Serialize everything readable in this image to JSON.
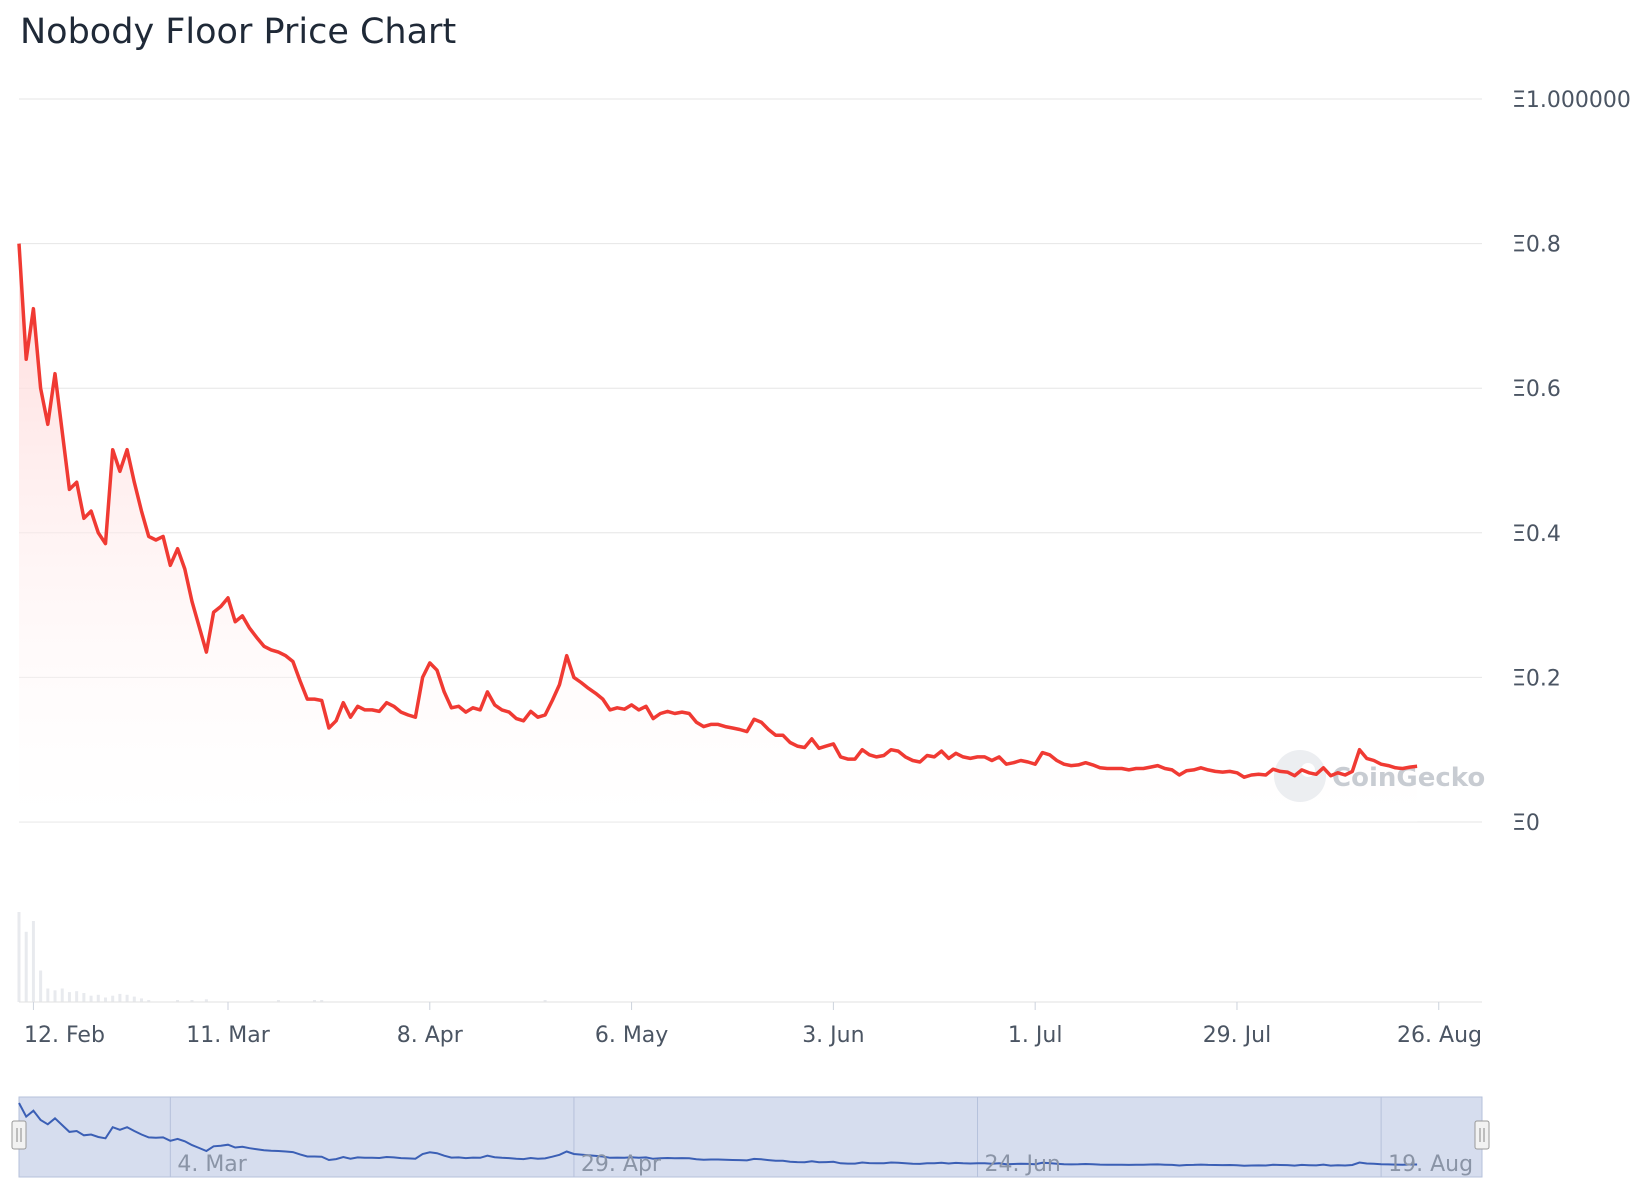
{
  "title": "Nobody Floor Price Chart",
  "watermark": "CoinGecko",
  "colors": {
    "line": "#f03a33",
    "area_top": "#ffd6d6",
    "grid": "#e6e6e6",
    "navigator_fill": "#d6ddee",
    "navigator_line": "#3b5fb5",
    "volume": "#e8eaee"
  },
  "chart_data": {
    "type": "area",
    "title": "Nobody Floor Price Chart",
    "xlabel": "",
    "ylabel": "",
    "ylim": [
      0,
      1.0
    ],
    "y_ticks": [
      "Ξ0",
      "Ξ0.2",
      "Ξ0.4",
      "Ξ0.6",
      "Ξ0.8",
      "Ξ1.000000"
    ],
    "y_tick_values": [
      0,
      0.2,
      0.4,
      0.6,
      0.8,
      1.0
    ],
    "x_ticks": [
      "12. Feb",
      "11. Mar",
      "8. Apr",
      "6. May",
      "3. Jun",
      "1. Jul",
      "29. Jul",
      "26. Aug"
    ],
    "x_tick_days": [
      2,
      29,
      57,
      85,
      113,
      141,
      169,
      197
    ],
    "x_range_days": [
      0,
      203
    ],
    "grid": true,
    "legend": "none",
    "series": [
      {
        "values": [
          [
            0,
            0.8
          ],
          [
            1,
            0.64
          ],
          [
            2,
            0.71
          ],
          [
            3,
            0.6
          ],
          [
            4,
            0.55
          ],
          [
            5,
            0.62
          ],
          [
            6,
            0.54
          ],
          [
            7,
            0.46
          ],
          [
            8,
            0.47
          ],
          [
            9,
            0.42
          ],
          [
            10,
            0.43
          ],
          [
            11,
            0.4
          ],
          [
            12,
            0.385
          ],
          [
            13,
            0.515
          ],
          [
            14,
            0.485
          ],
          [
            15,
            0.515
          ],
          [
            16,
            0.47
          ],
          [
            17,
            0.43
          ],
          [
            18,
            0.395
          ],
          [
            19,
            0.39
          ],
          [
            20,
            0.395
          ],
          [
            21,
            0.355
          ],
          [
            22,
            0.378
          ],
          [
            23,
            0.35
          ],
          [
            24,
            0.305
          ],
          [
            25,
            0.27
          ],
          [
            26,
            0.235
          ],
          [
            27,
            0.29
          ],
          [
            28,
            0.298
          ],
          [
            29,
            0.31
          ],
          [
            30,
            0.277
          ],
          [
            31,
            0.285
          ],
          [
            32,
            0.268
          ],
          [
            33,
            0.255
          ],
          [
            34,
            0.243
          ],
          [
            35,
            0.238
          ],
          [
            36,
            0.235
          ],
          [
            37,
            0.23
          ],
          [
            38,
            0.222
          ],
          [
            39,
            0.195
          ],
          [
            40,
            0.17
          ],
          [
            41,
            0.17
          ],
          [
            42,
            0.168
          ],
          [
            43,
            0.13
          ],
          [
            44,
            0.14
          ],
          [
            45,
            0.165
          ],
          [
            46,
            0.145
          ],
          [
            47,
            0.16
          ],
          [
            48,
            0.155
          ],
          [
            49,
            0.155
          ],
          [
            50,
            0.153
          ],
          [
            51,
            0.165
          ],
          [
            52,
            0.16
          ],
          [
            53,
            0.152
          ],
          [
            54,
            0.148
          ],
          [
            55,
            0.145
          ],
          [
            56,
            0.2
          ],
          [
            57,
            0.22
          ],
          [
            58,
            0.21
          ],
          [
            59,
            0.18
          ],
          [
            60,
            0.158
          ],
          [
            61,
            0.16
          ],
          [
            62,
            0.152
          ],
          [
            63,
            0.158
          ],
          [
            64,
            0.155
          ],
          [
            65,
            0.18
          ],
          [
            66,
            0.162
          ],
          [
            67,
            0.155
          ],
          [
            68,
            0.152
          ],
          [
            69,
            0.143
          ],
          [
            70,
            0.14
          ],
          [
            71,
            0.153
          ],
          [
            72,
            0.145
          ],
          [
            73,
            0.148
          ],
          [
            74,
            0.168
          ],
          [
            75,
            0.19
          ],
          [
            76,
            0.23
          ],
          [
            77,
            0.2
          ],
          [
            78,
            0.193
          ],
          [
            79,
            0.185
          ],
          [
            80,
            0.178
          ],
          [
            81,
            0.17
          ],
          [
            82,
            0.155
          ],
          [
            83,
            0.158
          ],
          [
            84,
            0.156
          ],
          [
            85,
            0.162
          ],
          [
            86,
            0.155
          ],
          [
            87,
            0.16
          ],
          [
            88,
            0.143
          ],
          [
            89,
            0.15
          ],
          [
            90,
            0.153
          ],
          [
            91,
            0.15
          ],
          [
            92,
            0.152
          ],
          [
            93,
            0.15
          ],
          [
            94,
            0.138
          ],
          [
            95,
            0.132
          ],
          [
            96,
            0.135
          ],
          [
            97,
            0.135
          ],
          [
            98,
            0.132
          ],
          [
            99,
            0.13
          ],
          [
            100,
            0.128
          ],
          [
            101,
            0.125
          ],
          [
            102,
            0.142
          ],
          [
            103,
            0.138
          ],
          [
            104,
            0.128
          ],
          [
            105,
            0.12
          ],
          [
            106,
            0.12
          ],
          [
            107,
            0.11
          ],
          [
            108,
            0.105
          ],
          [
            109,
            0.103
          ],
          [
            110,
            0.115
          ],
          [
            111,
            0.102
          ],
          [
            112,
            0.105
          ],
          [
            113,
            0.108
          ],
          [
            114,
            0.09
          ],
          [
            115,
            0.087
          ],
          [
            116,
            0.087
          ],
          [
            117,
            0.1
          ],
          [
            118,
            0.093
          ],
          [
            119,
            0.09
          ],
          [
            120,
            0.092
          ],
          [
            121,
            0.1
          ],
          [
            122,
            0.098
          ],
          [
            123,
            0.09
          ],
          [
            124,
            0.085
          ],
          [
            125,
            0.083
          ],
          [
            126,
            0.092
          ],
          [
            127,
            0.09
          ],
          [
            128,
            0.098
          ],
          [
            129,
            0.088
          ],
          [
            130,
            0.095
          ],
          [
            131,
            0.09
          ],
          [
            132,
            0.088
          ],
          [
            133,
            0.09
          ],
          [
            134,
            0.09
          ],
          [
            135,
            0.085
          ],
          [
            136,
            0.09
          ],
          [
            137,
            0.08
          ],
          [
            138,
            0.082
          ],
          [
            139,
            0.085
          ],
          [
            140,
            0.083
          ],
          [
            141,
            0.08
          ],
          [
            142,
            0.096
          ],
          [
            143,
            0.093
          ],
          [
            144,
            0.085
          ],
          [
            145,
            0.08
          ],
          [
            146,
            0.078
          ],
          [
            147,
            0.079
          ],
          [
            148,
            0.082
          ],
          [
            149,
            0.079
          ],
          [
            150,
            0.075
          ],
          [
            151,
            0.074
          ],
          [
            152,
            0.074
          ],
          [
            153,
            0.074
          ],
          [
            154,
            0.072
          ],
          [
            155,
            0.074
          ],
          [
            156,
            0.074
          ],
          [
            157,
            0.076
          ],
          [
            158,
            0.078
          ],
          [
            159,
            0.074
          ],
          [
            160,
            0.072
          ],
          [
            161,
            0.065
          ],
          [
            162,
            0.071
          ],
          [
            163,
            0.072
          ],
          [
            164,
            0.075
          ],
          [
            165,
            0.072
          ],
          [
            166,
            0.07
          ],
          [
            167,
            0.069
          ],
          [
            168,
            0.07
          ],
          [
            169,
            0.068
          ],
          [
            170,
            0.062
          ],
          [
            171,
            0.065
          ],
          [
            172,
            0.066
          ],
          [
            173,
            0.065
          ],
          [
            174,
            0.073
          ],
          [
            175,
            0.07
          ],
          [
            176,
            0.069
          ],
          [
            177,
            0.064
          ],
          [
            178,
            0.072
          ],
          [
            179,
            0.068
          ],
          [
            180,
            0.066
          ],
          [
            181,
            0.075
          ],
          [
            182,
            0.064
          ],
          [
            183,
            0.068
          ],
          [
            184,
            0.065
          ],
          [
            185,
            0.07
          ],
          [
            186,
            0.1
          ],
          [
            187,
            0.088
          ],
          [
            188,
            0.085
          ],
          [
            189,
            0.08
          ],
          [
            190,
            0.078
          ],
          [
            191,
            0.075
          ],
          [
            192,
            0.074
          ],
          [
            193,
            0.076
          ],
          [
            194,
            0.077
          ]
        ]
      }
    ],
    "volume": [
      [
        0,
        1.0
      ],
      [
        1,
        0.78
      ],
      [
        2,
        0.9
      ],
      [
        3,
        0.35
      ],
      [
        4,
        0.15
      ],
      [
        5,
        0.13
      ],
      [
        6,
        0.15
      ],
      [
        7,
        0.11
      ],
      [
        8,
        0.12
      ],
      [
        9,
        0.1
      ],
      [
        10,
        0.07
      ],
      [
        11,
        0.08
      ],
      [
        12,
        0.05
      ],
      [
        13,
        0.07
      ],
      [
        14,
        0.09
      ],
      [
        15,
        0.08
      ],
      [
        16,
        0.06
      ],
      [
        17,
        0.04
      ],
      [
        18,
        0.02
      ],
      [
        22,
        0.02
      ],
      [
        24,
        0.02
      ],
      [
        26,
        0.03
      ],
      [
        36,
        0.02
      ],
      [
        41,
        0.02
      ],
      [
        42,
        0.02
      ],
      [
        73,
        0.02
      ]
    ]
  },
  "navigator": {
    "labels": [
      "4. Mar",
      "29. Apr",
      "24. Jun",
      "19. Aug"
    ],
    "label_days": [
      21,
      77,
      133,
      189
    ]
  }
}
